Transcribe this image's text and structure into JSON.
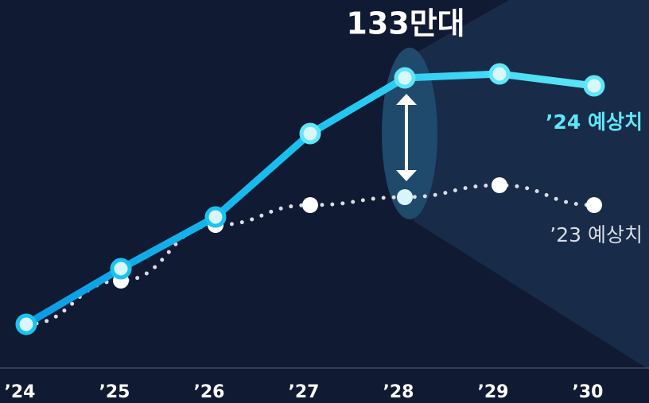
{
  "chart_data": {
    "type": "line",
    "annotation": "133만대",
    "categories": [
      "’24",
      "’25",
      "’26",
      "’27",
      "’28",
      "’29",
      "’30"
    ],
    "series": [
      {
        "name": "’24 예상치",
        "color": "#5ee7f7",
        "values": [
          71,
          85,
          98,
          119,
          133,
          134,
          131
        ]
      },
      {
        "name": "’23 예상치",
        "color": "#d9dde6",
        "values": [
          71,
          82,
          96,
          101,
          103,
          106,
          101
        ]
      }
    ],
    "ylim": [
      60,
      140
    ]
  }
}
